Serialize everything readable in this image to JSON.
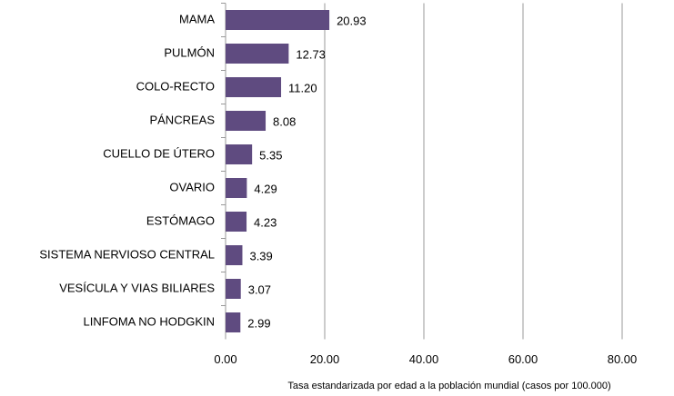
{
  "chart_data": {
    "type": "barh",
    "categories": [
      "MAMA",
      "PULMÓN",
      "COLO-RECTO",
      "PÁNCREAS",
      "CUELLO DE ÚTERO",
      "OVARIO",
      "ESTÓMAGO",
      "SISTEMA NERVIOSO CENTRAL",
      "VESÍCULA Y VIAS BILIARES",
      "LINFOMA NO HODGKIN"
    ],
    "values": [
      20.93,
      12.73,
      11.2,
      8.08,
      5.35,
      4.29,
      4.23,
      3.39,
      3.07,
      2.99
    ],
    "value_labels": [
      "20.93",
      "12.73",
      "11.20",
      "8.08",
      "5.35",
      "4.29",
      "4.23",
      "3.39",
      "3.07",
      "2.99"
    ],
    "color": "#5f4b80",
    "xlim": [
      0,
      90
    ],
    "xticks": [
      {
        "value": 0,
        "label": "0.00"
      },
      {
        "value": 20,
        "label": "20.00"
      },
      {
        "value": 40,
        "label": "40.00"
      },
      {
        "value": 60,
        "label": "60.00"
      },
      {
        "value": 80,
        "label": "80.00"
      }
    ],
    "grid": true,
    "xlabel": "Tasa estandarizada  por edad a la población mundial (casos por 100.000)"
  }
}
